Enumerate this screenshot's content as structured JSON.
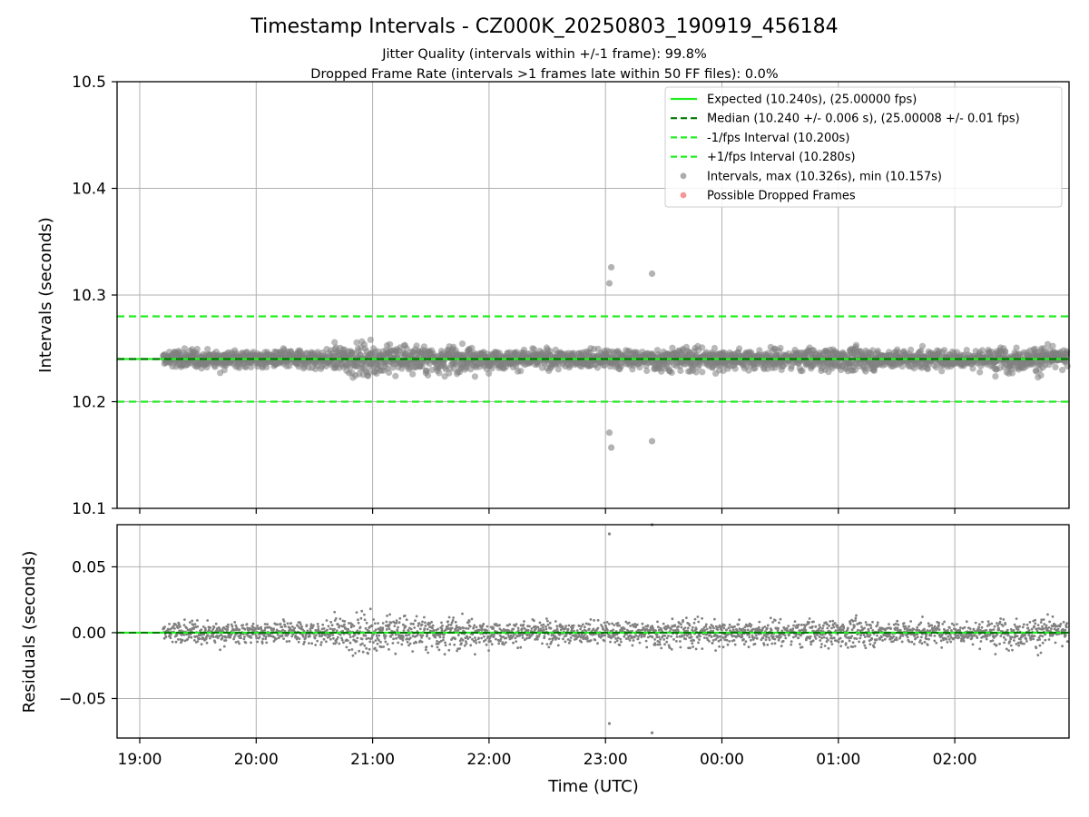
{
  "figure": {
    "title": "Timestamp Intervals - CZ000K_20250803_190919_456184",
    "subtitle_1": "Jitter Quality (intervals within +/-1 frame): 99.8%",
    "subtitle_2": "Dropped Frame Rate (intervals >1 frames late within 50 FF files): 0.0%",
    "xlabel": "Time (UTC)"
  },
  "colors": {
    "expected": "#22ee22",
    "median": "#007a00",
    "bound": "#22ee22",
    "points": "#808080",
    "dropped": "#f06060",
    "grid": "#b0b0b0"
  },
  "chart_data": [
    {
      "type": "scatter",
      "name": "intervals",
      "ylabel": "Intervals (seconds)",
      "ylim": [
        10.1,
        10.5
      ],
      "xlim": [
        "18:48",
        "02:58"
      ],
      "yticks": [
        "10.1",
        "10.2",
        "10.3",
        "10.4",
        "10.5"
      ],
      "xticks": [
        "19:00",
        "20:00",
        "21:00",
        "22:00",
        "23:00",
        "00:00",
        "01:00",
        "02:00"
      ],
      "grid": true,
      "legend_position": "top-right",
      "legend": [
        {
          "label": "Expected (10.240s), (25.00000 fps)",
          "style": "solid-line",
          "color": "#22ee22"
        },
        {
          "label": "Median (10.240 +/- 0.006 s), (25.00008 +/- 0.01 fps)",
          "style": "dashed-line",
          "color": "#007a00"
        },
        {
          "label": "-1/fps Interval (10.200s)",
          "style": "dashed-line",
          "color": "#22ee22"
        },
        {
          "label": "+1/fps Interval (10.280s)",
          "style": "dashed-line",
          "color": "#22ee22"
        },
        {
          "label": "Intervals, max (10.326s), min (10.157s)",
          "style": "marker",
          "color": "#808080"
        },
        {
          "label": "Possible Dropped Frames",
          "style": "marker",
          "color": "#f06060"
        }
      ],
      "reference_lines": {
        "expected": 10.24,
        "median": 10.24,
        "lower": 10.2,
        "upper": 10.28
      },
      "series": [
        {
          "name": "Intervals",
          "time_range": [
            "19:12",
            "02:58"
          ],
          "center": 10.24,
          "spread": 0.006,
          "count": 2600
        },
        {
          "name": "Possible Dropped Frames",
          "values": []
        }
      ],
      "outliers": [
        {
          "time": "23:02",
          "value": 10.311
        },
        {
          "time": "23:03",
          "value": 10.326
        },
        {
          "time": "23:02",
          "value": 10.171
        },
        {
          "time": "23:03",
          "value": 10.157
        },
        {
          "time": "23:24",
          "value": 10.32
        },
        {
          "time": "23:24",
          "value": 10.163
        }
      ]
    },
    {
      "type": "scatter",
      "name": "residuals",
      "ylabel": "Residuals (seconds)",
      "ylim": [
        -0.08,
        0.082
      ],
      "yticks": [
        "−0.05",
        "0.00",
        "0.05"
      ],
      "xticks": [
        "19:00",
        "20:00",
        "21:00",
        "22:00",
        "23:00",
        "00:00",
        "01:00",
        "02:00"
      ],
      "grid": true,
      "reference_line": 0.0,
      "outliers": [
        {
          "time": "23:02",
          "value": 0.075
        },
        {
          "time": "23:02",
          "value": -0.069
        },
        {
          "time": "23:24",
          "value": 0.082
        },
        {
          "time": "23:24",
          "value": -0.076
        }
      ]
    }
  ]
}
